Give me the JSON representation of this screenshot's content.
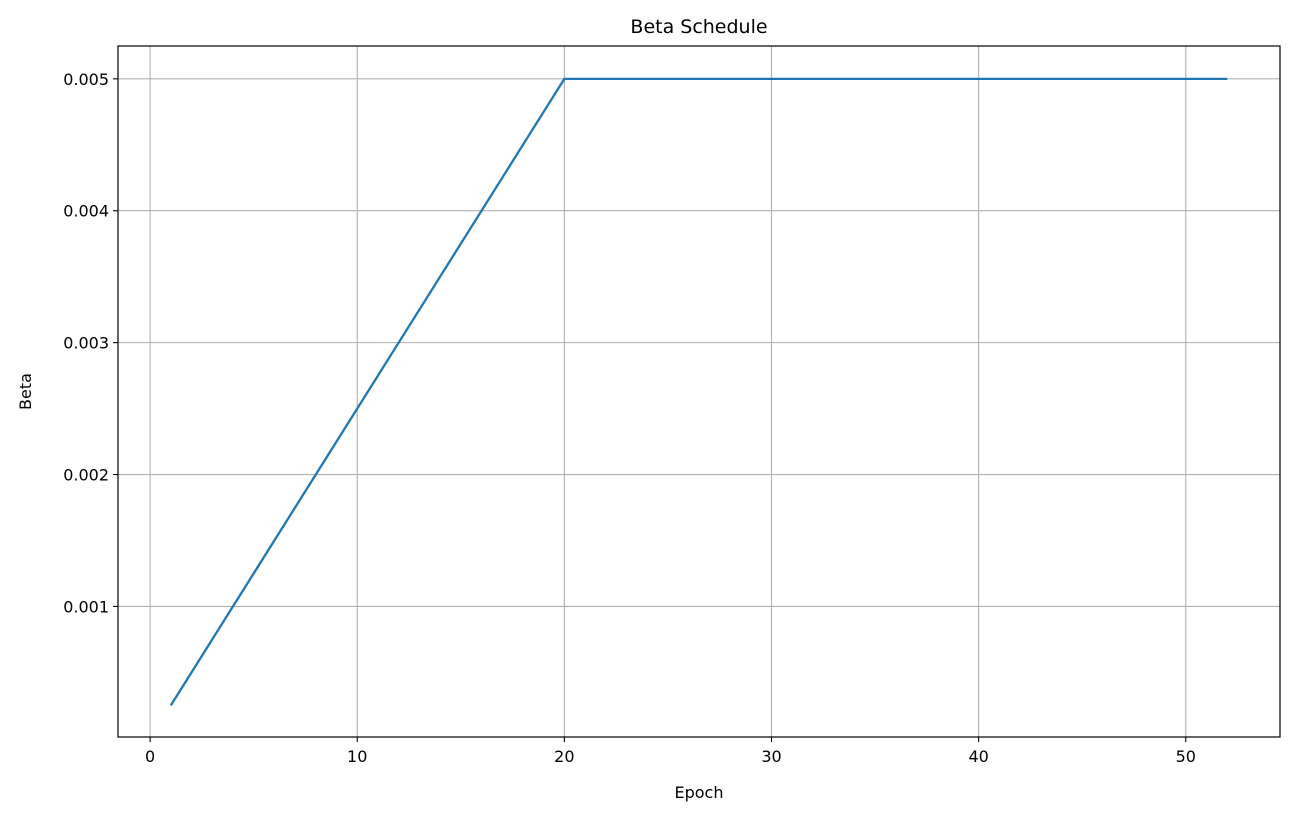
{
  "chart_data": {
    "type": "line",
    "title": "Beta Schedule",
    "xlabel": "Epoch",
    "ylabel": "Beta",
    "xlim": [
      -1.55,
      54.55
    ],
    "ylim": [
      1e-05,
      0.005249
    ],
    "xticks": [
      0,
      10,
      20,
      30,
      40,
      50
    ],
    "yticks": [
      0.001,
      0.002,
      0.003,
      0.004,
      0.005
    ],
    "ytick_labels": [
      "0.001",
      "0.002",
      "0.003",
      "0.004",
      "0.005"
    ],
    "grid": true,
    "series": [
      {
        "color": "#1f77b4",
        "x": [
          1,
          20,
          52
        ],
        "y": [
          0.00025,
          0.005,
          0.005
        ]
      }
    ]
  }
}
